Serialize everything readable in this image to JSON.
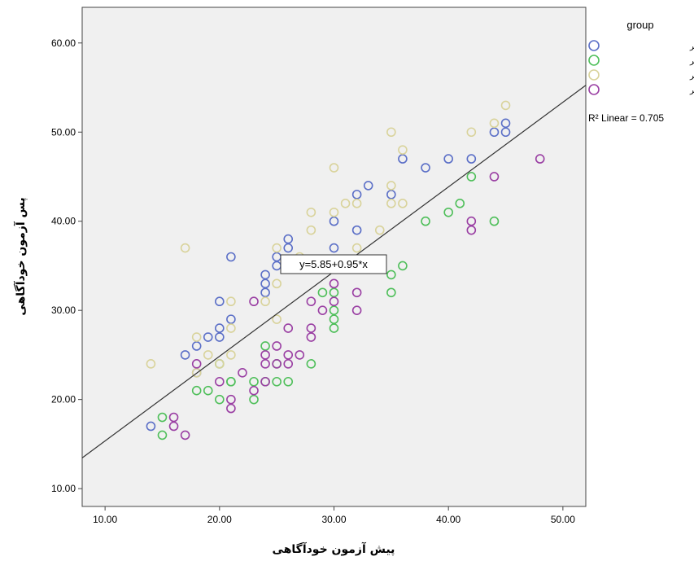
{
  "chart_data": {
    "type": "scatter",
    "xlabel": "پیش آزمون خودآگاهی",
    "ylabel": "پس آزمون خودآگاهی",
    "xlim": [
      8,
      52
    ],
    "ylim": [
      8,
      64
    ],
    "x_ticks": [
      "10.00",
      "20.00",
      "30.00",
      "40.00",
      "50.00"
    ],
    "y_ticks": [
      "10.00",
      "20.00",
      "30.00",
      "40.00",
      "50.00",
      "60.00"
    ],
    "grid": false,
    "legend_title": "group",
    "legend_position": "right",
    "series": [
      {
        "name": "گروه آزمایش پسر",
        "color": "#5b6fc7",
        "points": [
          [
            14,
            17
          ],
          [
            17,
            25
          ],
          [
            18,
            26
          ],
          [
            18,
            23
          ],
          [
            19,
            27
          ],
          [
            20,
            28
          ],
          [
            20,
            31
          ],
          [
            20,
            27
          ],
          [
            21,
            29
          ],
          [
            21,
            36
          ],
          [
            24,
            34
          ],
          [
            24,
            33
          ],
          [
            24,
            32
          ],
          [
            25,
            36
          ],
          [
            25,
            35
          ],
          [
            26,
            38
          ],
          [
            26,
            37
          ],
          [
            30,
            40
          ],
          [
            30,
            37
          ],
          [
            32,
            43
          ],
          [
            32,
            39
          ],
          [
            33,
            44
          ],
          [
            35,
            43
          ],
          [
            36,
            47
          ],
          [
            38,
            46
          ],
          [
            40,
            47
          ],
          [
            42,
            47
          ],
          [
            44,
            50
          ],
          [
            45,
            51
          ],
          [
            45,
            50
          ]
        ]
      },
      {
        "name": "گروه کنترل پسر",
        "color": "#4fbf5a",
        "points": [
          [
            15,
            16
          ],
          [
            15,
            18
          ],
          [
            18,
            21
          ],
          [
            19,
            21
          ],
          [
            20,
            24
          ],
          [
            20,
            20
          ],
          [
            21,
            22
          ],
          [
            21,
            22
          ],
          [
            23,
            22
          ],
          [
            23,
            20
          ],
          [
            24,
            26
          ],
          [
            24,
            22
          ],
          [
            25,
            24
          ],
          [
            25,
            22
          ],
          [
            26,
            22
          ],
          [
            28,
            24
          ],
          [
            29,
            32
          ],
          [
            30,
            32
          ],
          [
            30,
            30
          ],
          [
            30,
            29
          ],
          [
            30,
            28
          ],
          [
            35,
            34
          ],
          [
            35,
            32
          ],
          [
            36,
            35
          ],
          [
            38,
            40
          ],
          [
            40,
            41
          ],
          [
            41,
            42
          ],
          [
            42,
            45
          ],
          [
            44,
            40
          ]
        ]
      },
      {
        "name": "گروه آزمایش دختر",
        "color": "#d9d39b",
        "points": [
          [
            14,
            24
          ],
          [
            17,
            37
          ],
          [
            18,
            27
          ],
          [
            18,
            23
          ],
          [
            19,
            25
          ],
          [
            20,
            24
          ],
          [
            21,
            31
          ],
          [
            21,
            28
          ],
          [
            21,
            25
          ],
          [
            24,
            31
          ],
          [
            25,
            37
          ],
          [
            25,
            33
          ],
          [
            25,
            29
          ],
          [
            27,
            36
          ],
          [
            28,
            41
          ],
          [
            28,
            39
          ],
          [
            30,
            46
          ],
          [
            30,
            41
          ],
          [
            31,
            42
          ],
          [
            32,
            42
          ],
          [
            32,
            37
          ],
          [
            34,
            39
          ],
          [
            35,
            50
          ],
          [
            35,
            44
          ],
          [
            35,
            42
          ],
          [
            36,
            48
          ],
          [
            36,
            42
          ],
          [
            42,
            50
          ],
          [
            44,
            51
          ],
          [
            45,
            53
          ]
        ]
      },
      {
        "name": "گروه کنترل دختر",
        "color": "#9a3fa3",
        "points": [
          [
            16,
            18
          ],
          [
            16,
            17
          ],
          [
            17,
            16
          ],
          [
            18,
            24
          ],
          [
            20,
            22
          ],
          [
            21,
            20
          ],
          [
            21,
            19
          ],
          [
            22,
            23
          ],
          [
            23,
            31
          ],
          [
            23,
            21
          ],
          [
            24,
            25
          ],
          [
            24,
            24
          ],
          [
            24,
            22
          ],
          [
            25,
            26
          ],
          [
            25,
            24
          ],
          [
            26,
            28
          ],
          [
            26,
            25
          ],
          [
            26,
            24
          ],
          [
            27,
            25
          ],
          [
            28,
            31
          ],
          [
            28,
            28
          ],
          [
            28,
            27
          ],
          [
            29,
            30
          ],
          [
            30,
            31
          ],
          [
            30,
            33
          ],
          [
            32,
            32
          ],
          [
            32,
            30
          ],
          [
            42,
            40
          ],
          [
            42,
            39
          ],
          [
            44,
            45
          ],
          [
            48,
            47
          ]
        ]
      }
    ],
    "fit_line": {
      "intercept": 5.85,
      "slope": 0.95,
      "color": "#333333"
    },
    "fit_equation": "y=5.85+0.95*x",
    "r_squared_text": "R² Linear = 0.705"
  }
}
